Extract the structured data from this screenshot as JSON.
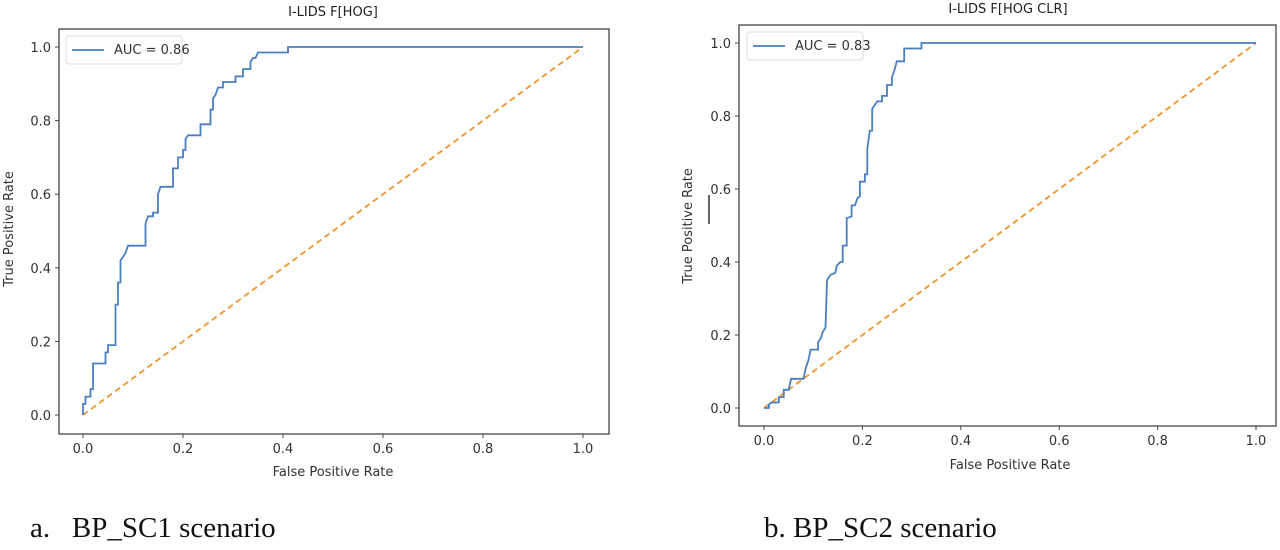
{
  "chart_data": [
    {
      "type": "line",
      "title": "I-LIDS F[HOG]",
      "xlabel": "False Positive Rate",
      "ylabel": "True Positive Rate",
      "xlim": [
        -0.05,
        1.05
      ],
      "ylim": [
        -0.05,
        1.05
      ],
      "xticks": [
        "0.0",
        "0.2",
        "0.4",
        "0.6",
        "0.8",
        "1.0"
      ],
      "yticks": [
        "0.0",
        "0.2",
        "0.4",
        "0.6",
        "0.8",
        "1.0"
      ],
      "legend": "top-left",
      "grid": false,
      "caption": "a.   BP_SC1 scenario",
      "series": [
        {
          "name": "AUC = 0.86",
          "color": "#4a7fc1",
          "style": "solid",
          "x": [
            0,
            0,
            0.005,
            0.005,
            0.015,
            0.015,
            0.02,
            0.02,
            0.045,
            0.045,
            0.05,
            0.05,
            0.065,
            0.065,
            0.07,
            0.07,
            0.075,
            0.075,
            0.08,
            0.085,
            0.09,
            0.125,
            0.125,
            0.13,
            0.14,
            0.14,
            0.15,
            0.15,
            0.155,
            0.18,
            0.18,
            0.19,
            0.19,
            0.2,
            0.2,
            0.205,
            0.205,
            0.21,
            0.235,
            0.235,
            0.255,
            0.255,
            0.26,
            0.26,
            0.265,
            0.27,
            0.28,
            0.28,
            0.305,
            0.305,
            0.32,
            0.32,
            0.335,
            0.335,
            0.34,
            0.345,
            0.35,
            0.41,
            0.41,
            1
          ],
          "y": [
            0,
            0.03,
            0.03,
            0.05,
            0.05,
            0.07,
            0.07,
            0.14,
            0.14,
            0.17,
            0.17,
            0.19,
            0.19,
            0.3,
            0.3,
            0.36,
            0.36,
            0.42,
            0.43,
            0.44,
            0.46,
            0.46,
            0.52,
            0.54,
            0.54,
            0.55,
            0.55,
            0.6,
            0.62,
            0.62,
            0.67,
            0.67,
            0.7,
            0.7,
            0.72,
            0.72,
            0.75,
            0.76,
            0.76,
            0.79,
            0.79,
            0.83,
            0.83,
            0.86,
            0.87,
            0.89,
            0.89,
            0.905,
            0.905,
            0.92,
            0.92,
            0.94,
            0.94,
            0.96,
            0.97,
            0.97,
            0.985,
            0.985,
            1.0,
            1.0
          ]
        },
        {
          "color": "#f0962a",
          "style": "dashed",
          "x": [
            0,
            1
          ],
          "y": [
            0,
            1
          ]
        }
      ]
    },
    {
      "type": "line",
      "title": "I-LIDS F[HOG CLR]",
      "xlabel": "False Positive Rate",
      "ylabel": "True Positive Rate",
      "xlim": [
        -0.05,
        1.05
      ],
      "ylim": [
        -0.05,
        1.05
      ],
      "xticks": [
        "0.0",
        "0.2",
        "0.4",
        "0.6",
        "0.8",
        "1.0"
      ],
      "yticks": [
        "0.0",
        "0.2",
        "0.4",
        "0.6",
        "0.8",
        "1.0"
      ],
      "legend": "top-left",
      "grid": false,
      "caption": "b. BP_SC2 scenario",
      "series": [
        {
          "name": "AUC = 0.83",
          "color": "#4a7fc1",
          "style": "solid",
          "x": [
            0,
            0.01,
            0.01,
            0.015,
            0.03,
            0.03,
            0.04,
            0.04,
            0.05,
            0.055,
            0.08,
            0.085,
            0.09,
            0.095,
            0.11,
            0.11,
            0.115,
            0.12,
            0.125,
            0.128,
            0.135,
            0.145,
            0.148,
            0.155,
            0.16,
            0.16,
            0.168,
            0.168,
            0.178,
            0.178,
            0.185,
            0.19,
            0.195,
            0.195,
            0.205,
            0.205,
            0.21,
            0.21,
            0.215,
            0.22,
            0.22,
            0.225,
            0.23,
            0.24,
            0.24,
            0.25,
            0.25,
            0.26,
            0.26,
            0.265,
            0.27,
            0.285,
            0.285,
            0.32,
            0.32,
            1
          ],
          "y": [
            0,
            0,
            0.01,
            0.015,
            0.015,
            0.03,
            0.03,
            0.05,
            0.05,
            0.08,
            0.08,
            0.11,
            0.13,
            0.16,
            0.16,
            0.18,
            0.19,
            0.21,
            0.22,
            0.35,
            0.365,
            0.37,
            0.39,
            0.4,
            0.4,
            0.445,
            0.445,
            0.52,
            0.525,
            0.555,
            0.555,
            0.575,
            0.58,
            0.62,
            0.62,
            0.64,
            0.64,
            0.71,
            0.76,
            0.76,
            0.82,
            0.83,
            0.84,
            0.84,
            0.855,
            0.855,
            0.885,
            0.885,
            0.905,
            0.925,
            0.95,
            0.95,
            0.985,
            0.985,
            1.0,
            1.0
          ]
        },
        {
          "color": "#f0962a",
          "style": "dashed",
          "x": [
            0,
            1
          ],
          "y": [
            0,
            1
          ]
        }
      ]
    }
  ]
}
